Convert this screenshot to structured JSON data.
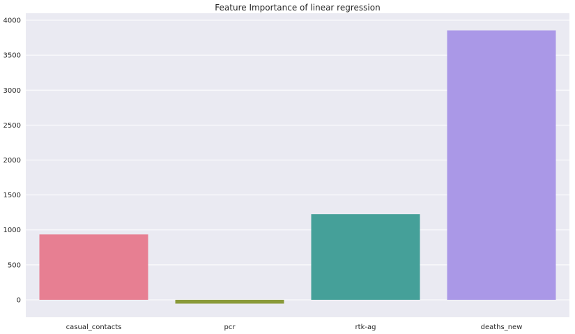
{
  "chart_data": {
    "type": "bar",
    "title": "Feature Importance of linear regression",
    "xlabel": "",
    "ylabel": "",
    "categories": [
      "casual_contacts",
      "pcr",
      "rtk-ag",
      "deaths_new"
    ],
    "values": [
      935,
      -55,
      1225,
      3855
    ],
    "colors": [
      "#e77f92",
      "#8a9a3a",
      "#45a099",
      "#aa98e7"
    ],
    "ylim": [
      -250,
      4100
    ],
    "yticks": [
      0,
      500,
      1000,
      1500,
      2000,
      2500,
      3000,
      3500,
      4000
    ],
    "ytick_labels": [
      "0",
      "500",
      "1000",
      "1500",
      "2000",
      "2500",
      "3000",
      "3500",
      "4000"
    ],
    "grid": true,
    "legend": "none",
    "background": "#eaeaf2",
    "grid_color": "#ffffff"
  }
}
